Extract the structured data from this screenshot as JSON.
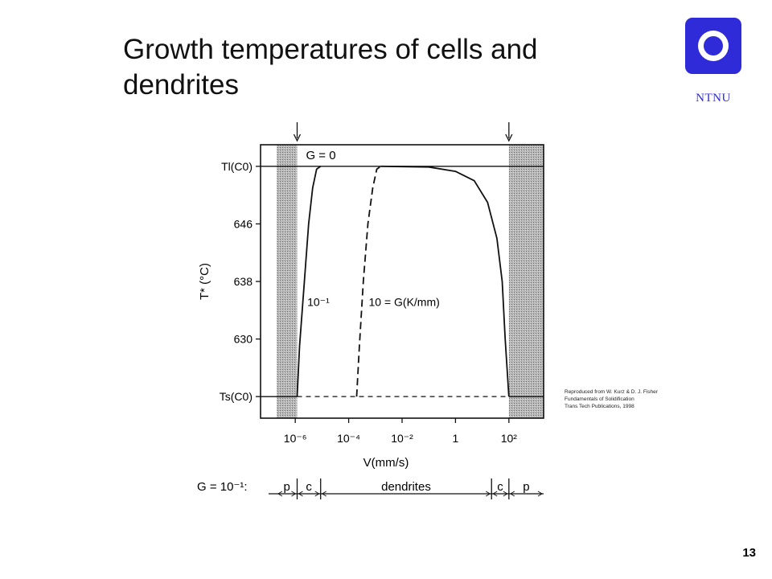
{
  "slide": {
    "title": "Growth temperatures of cells and dendrites",
    "logo_text": "NTNU",
    "page_number": "13",
    "credit_lines": [
      "Reproduced from W. Kurz & D. J. Fisher",
      "Fundamentals of Solidification",
      "Trans Tech Publications, 1998"
    ]
  },
  "colors": {
    "logo": "#2f2bd9",
    "title": "#111111",
    "shade": "#a8a8a8"
  },
  "chart_data": {
    "type": "line",
    "xlabel": "V(mm/s)",
    "ylabel": "T* (°C)",
    "xscale": "log",
    "x_ticks": [
      "10⁻⁶",
      "10⁻⁴",
      "10⁻²",
      "1",
      "10²"
    ],
    "x_tick_exponents": [
      -6,
      -4,
      -2,
      0,
      2
    ],
    "y_ticks": [
      "Tl(C0)",
      "646",
      "638",
      "630",
      "Ts(C0)"
    ],
    "y_tick_values": [
      654,
      646,
      638,
      630,
      622
    ],
    "xlim_log10": [
      -7.3,
      3.3
    ],
    "ylim": [
      619,
      657
    ],
    "top_label": "G = 0",
    "shaded_regions": [
      {
        "x_log10_range": [
          -6.7,
          -5.93
        ]
      },
      {
        "x_log10_range": [
          2.0,
          3.3
        ]
      }
    ],
    "series": [
      {
        "name": "10⁻¹",
        "style": "solid",
        "points": [
          [
            -5.93,
            622
          ],
          [
            -5.84,
            629
          ],
          [
            -5.66,
            638
          ],
          [
            -5.5,
            646
          ],
          [
            -5.35,
            651
          ],
          [
            -5.2,
            653.6
          ],
          [
            -5.05,
            654
          ]
        ]
      },
      {
        "name": "10 = G(K/mm)",
        "style": "dashed",
        "points": [
          [
            -3.7,
            622
          ],
          [
            -3.6,
            629
          ],
          [
            -3.45,
            638
          ],
          [
            -3.28,
            646
          ],
          [
            -3.1,
            651
          ],
          [
            -2.95,
            653.6
          ],
          [
            -2.8,
            654
          ]
        ]
      },
      {
        "name": "",
        "style": "solid",
        "points": [
          [
            -2.8,
            654
          ],
          [
            -1.0,
            653.9
          ],
          [
            0.0,
            653.3
          ],
          [
            0.7,
            652
          ],
          [
            1.2,
            649
          ],
          [
            1.55,
            644
          ],
          [
            1.75,
            638
          ],
          [
            1.86,
            630
          ],
          [
            2.0,
            622
          ]
        ]
      }
    ],
    "bottom_segment": {
      "style": "dashed",
      "y": 622,
      "x_log10_range": [
        -5.93,
        2.0
      ]
    },
    "regime_bar": {
      "label": "G = 10⁻¹:",
      "boundaries_log10": [
        -6.7,
        -5.93,
        -5.05,
        1.35,
        2.0,
        3.3
      ],
      "segments": [
        {
          "label": "p",
          "x_log10_range": [
            -6.7,
            -5.93
          ]
        },
        {
          "label": "c",
          "x_log10_range": [
            -5.93,
            -5.05
          ]
        },
        {
          "label": "dendrites",
          "x_log10_range": [
            -5.05,
            1.35
          ]
        },
        {
          "label": "c",
          "x_log10_range": [
            1.35,
            2.0
          ]
        },
        {
          "label": "p",
          "x_log10_range": [
            2.0,
            3.3
          ]
        }
      ]
    }
  }
}
